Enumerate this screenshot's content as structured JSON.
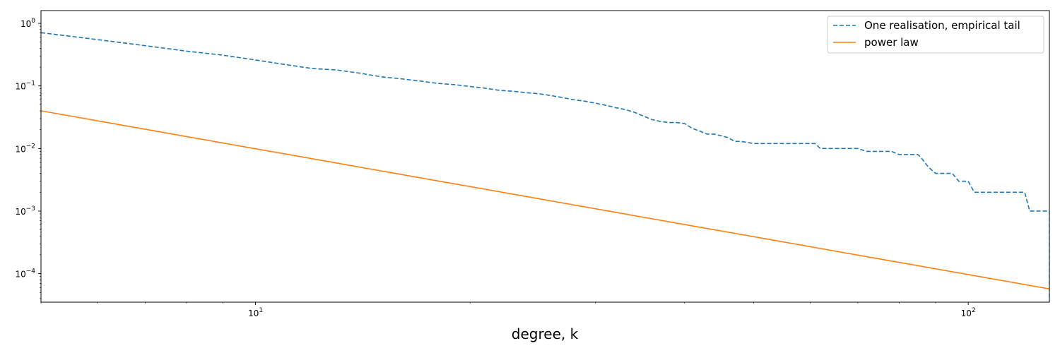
{
  "chart_data": {
    "type": "line",
    "title": "",
    "xlabel": "degree, k",
    "ylabel": "",
    "xscale": "log",
    "yscale": "log",
    "xlim": [
      5,
      130
    ],
    "ylim": [
      3.5e-05,
      1.6
    ],
    "grid": false,
    "legend_position": "top-right",
    "x_tick_labels": [
      {
        "value": 10,
        "base": "10",
        "exp": "1"
      },
      {
        "value": 100,
        "base": "10",
        "exp": "2"
      }
    ],
    "y_tick_labels": [
      {
        "value": 1,
        "base": "10",
        "exp": "0"
      },
      {
        "value": 0.1,
        "base": "10",
        "exp": "−1"
      },
      {
        "value": 0.01,
        "base": "10",
        "exp": "−2"
      },
      {
        "value": 0.001,
        "base": "10",
        "exp": "−3"
      },
      {
        "value": 0.0001,
        "base": "10",
        "exp": "−4"
      }
    ],
    "series": [
      {
        "name": "One realisation, empirical tail",
        "color": "#1f77b4",
        "style": "dashed",
        "x": [
          5,
          6,
          7,
          8,
          9,
          10,
          11,
          12,
          13,
          14,
          15,
          16,
          17,
          18,
          19,
          20,
          21,
          22,
          23,
          24,
          25,
          26,
          27,
          28,
          29,
          30,
          31,
          32,
          33,
          34,
          35,
          36,
          37,
          38,
          39,
          40,
          41,
          42,
          43,
          44,
          45,
          46,
          47,
          48,
          50,
          52,
          55,
          58,
          60,
          61,
          62,
          65,
          70,
          72,
          73,
          78,
          80,
          82,
          85,
          86,
          88,
          90,
          92,
          95,
          97,
          98,
          100,
          102,
          104,
          105,
          110,
          115,
          120,
          122,
          125,
          128,
          130,
          130
        ],
        "y": [
          0.71,
          0.55,
          0.44,
          0.36,
          0.31,
          0.26,
          0.22,
          0.19,
          0.18,
          0.16,
          0.14,
          0.13,
          0.12,
          0.11,
          0.105,
          0.098,
          0.092,
          0.085,
          0.082,
          0.078,
          0.075,
          0.07,
          0.065,
          0.06,
          0.057,
          0.053,
          0.049,
          0.045,
          0.042,
          0.038,
          0.033,
          0.029,
          0.027,
          0.026,
          0.026,
          0.025,
          0.021,
          0.019,
          0.017,
          0.017,
          0.016,
          0.015,
          0.013,
          0.013,
          0.012,
          0.012,
          0.012,
          0.012,
          0.012,
          0.012,
          0.01,
          0.01,
          0.01,
          0.009,
          0.009,
          0.009,
          0.008,
          0.008,
          0.008,
          0.007,
          0.005,
          0.004,
          0.004,
          0.004,
          0.003,
          0.003,
          0.003,
          0.002,
          0.002,
          0.002,
          0.002,
          0.002,
          0.002,
          0.001,
          0.001,
          0.001,
          0.001,
          3.5e-05
        ]
      },
      {
        "name": "power law",
        "color": "#ff7f0e",
        "style": "solid",
        "x": [
          5,
          130
        ],
        "y": [
          0.04,
          5.7e-05
        ]
      }
    ]
  }
}
